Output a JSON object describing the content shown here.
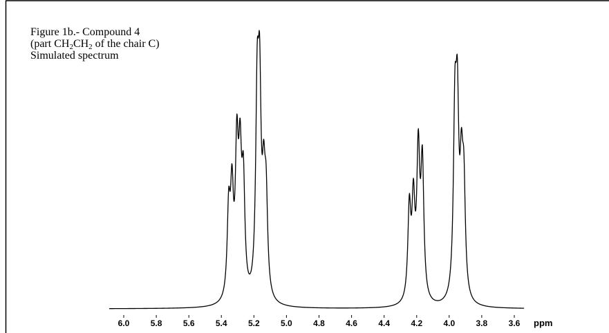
{
  "figure": {
    "caption_line1": "Figure 1b.- Compound 4",
    "caption_line2_pre": "(part CH",
    "caption_line2_sub1": "2",
    "caption_line2_mid": "CH",
    "caption_line2_sub2": "2",
    "caption_line2_post": " of the chair C)",
    "caption_line3": "Simulated spectrum"
  },
  "chart_data": {
    "type": "line",
    "title": "Figure 1b.- Compound 4 (part CH2CH2 of the chair C) Simulated spectrum",
    "xlabel": "ppm",
    "ylabel": "",
    "x_reversed": true,
    "xlim": [
      6.1,
      3.54
    ],
    "ylim": [
      0,
      1
    ],
    "grid": false,
    "x_ticks": [
      "6.0",
      "5.8",
      "5.6",
      "5.4",
      "5.2",
      "5.0",
      "4.8",
      "4.6",
      "4.4",
      "4.2",
      "4.0",
      "3.8",
      "3.6"
    ],
    "x_tick_values": [
      6.0,
      5.8,
      5.6,
      5.4,
      5.2,
      5.0,
      4.8,
      4.6,
      4.4,
      4.2,
      4.0,
      3.8,
      3.6
    ],
    "baseline": 0.0,
    "linewidth_ppm": 0.011,
    "peaks": [
      {
        "ppm": 5.355,
        "height": 0.46
      },
      {
        "ppm": 5.335,
        "height": 0.53
      },
      {
        "ppm": 5.305,
        "height": 0.75
      },
      {
        "ppm": 5.285,
        "height": 0.66
      },
      {
        "ppm": 5.265,
        "height": 0.58
      },
      {
        "ppm": 5.18,
        "height": 1.0
      },
      {
        "ppm": 5.165,
        "height": 0.99
      },
      {
        "ppm": 5.14,
        "height": 0.5
      },
      {
        "ppm": 5.125,
        "height": 0.48
      },
      {
        "ppm": 4.245,
        "height": 0.49
      },
      {
        "ppm": 4.22,
        "height": 0.5
      },
      {
        "ppm": 4.19,
        "height": 0.77
      },
      {
        "ppm": 4.165,
        "height": 0.72
      },
      {
        "ppm": 3.965,
        "height": 0.91
      },
      {
        "ppm": 3.95,
        "height": 0.9
      },
      {
        "ppm": 3.925,
        "height": 0.57
      },
      {
        "ppm": 3.91,
        "height": 0.55
      }
    ]
  }
}
